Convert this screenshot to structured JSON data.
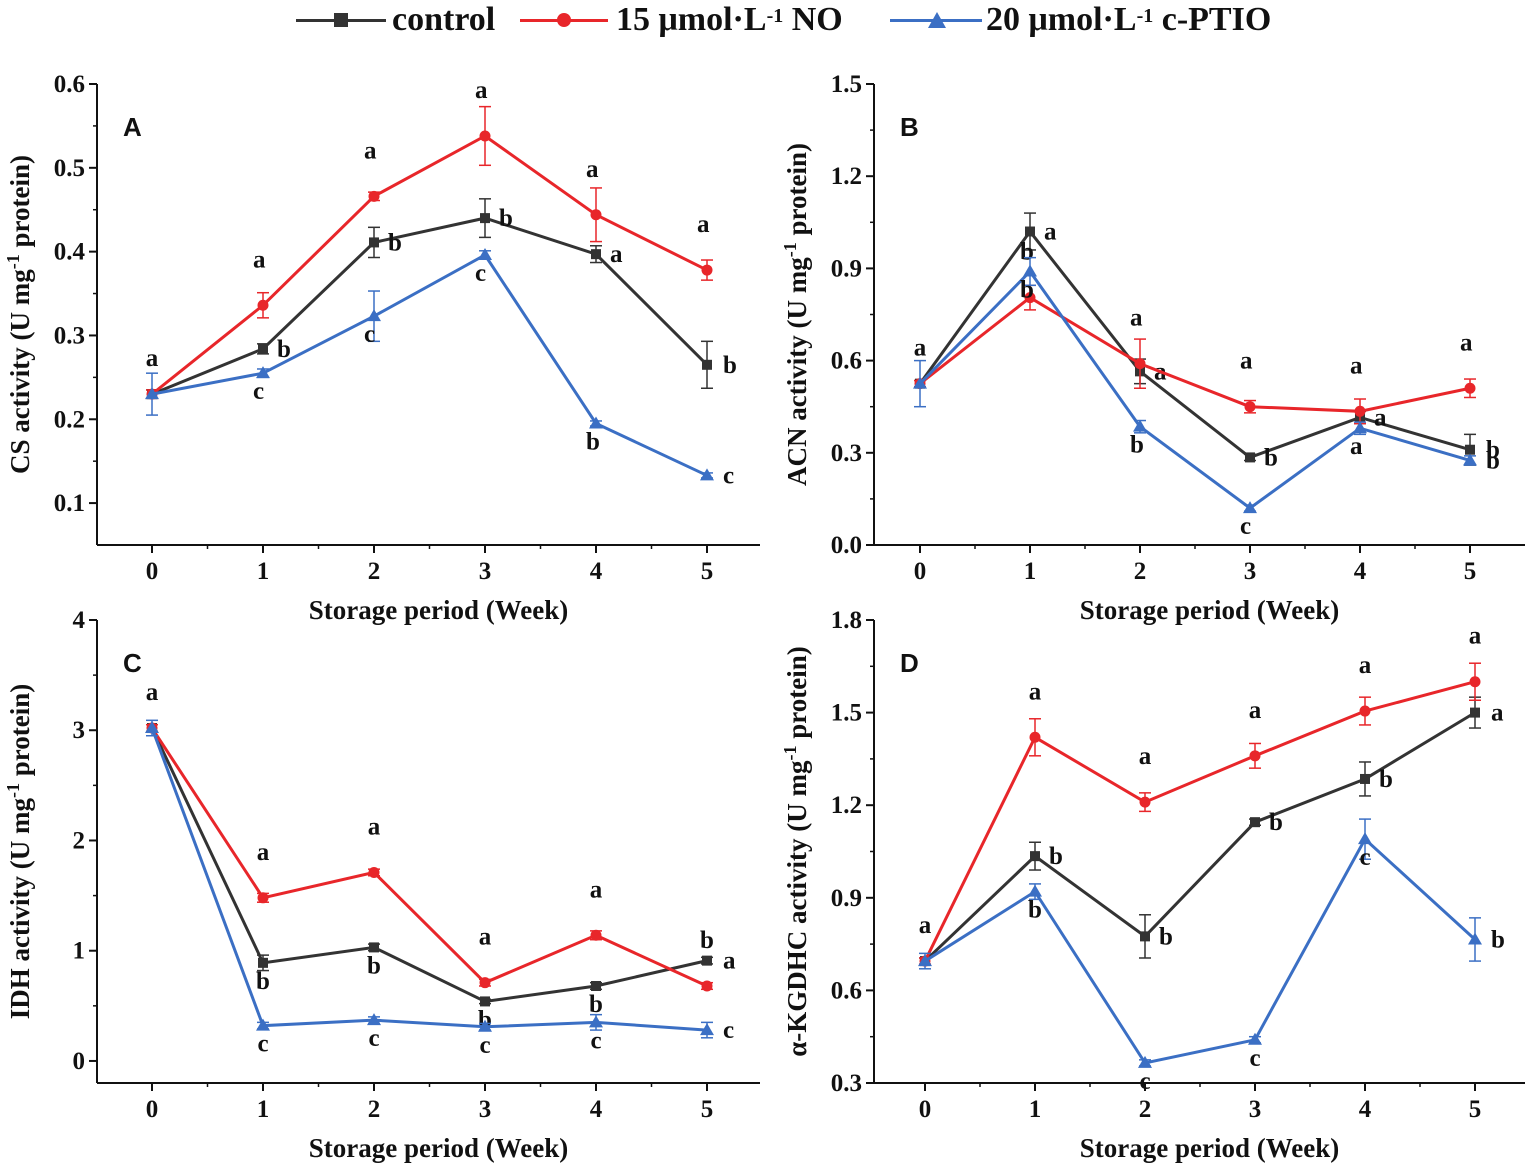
{
  "legend": {
    "items": [
      {
        "label": "control",
        "color": "#333333",
        "marker": "square"
      },
      {
        "label_main": "15 μmol·L",
        "label_sup": "-1",
        "label_tail": " NO",
        "color": "#e8262a",
        "marker": "circle"
      },
      {
        "label_main": "20 μmol·L",
        "label_sup": "-1",
        "label_tail": " c-PTIO",
        "color": "#3b6fc4",
        "marker": "triangle"
      }
    ]
  },
  "chart_data": [
    {
      "type": "line",
      "panel": "A",
      "ylabel_main": "CS activity (U mg",
      "ylabel_sup": "-1",
      "ylabel_tail": " protein)",
      "xlabel": "Storage period (Week)",
      "x": [
        0,
        1,
        2,
        3,
        4,
        5
      ],
      "ylim": [
        0.05,
        0.6
      ],
      "yticks": [
        0.1,
        0.2,
        0.3,
        0.4,
        0.5,
        0.6
      ],
      "ytick_labels": [
        "0.1",
        "0.2",
        "0.3",
        "0.4",
        "0.5",
        "0.6"
      ],
      "series": [
        {
          "name": "control",
          "values": [
            0.23,
            0.284,
            0.411,
            0.44,
            0.397,
            0.265
          ],
          "errors": [
            0.005,
            0.006,
            0.018,
            0.023,
            0.01,
            0.028
          ],
          "labels": [
            "",
            "b",
            "b",
            "b",
            "a",
            "b"
          ]
        },
        {
          "name": "15 μmol·L-1 NO",
          "values": [
            0.23,
            0.336,
            0.466,
            0.538,
            0.444,
            0.378
          ],
          "errors": [
            0.005,
            0.015,
            0.005,
            0.035,
            0.032,
            0.012
          ],
          "labels": [
            "a",
            "a",
            "a",
            "a",
            "a",
            "a"
          ]
        },
        {
          "name": "20 μmol·L-1 c-PTIO",
          "values": [
            0.23,
            0.255,
            0.323,
            0.396,
            0.195,
            0.133
          ],
          "errors": [
            0.025,
            0.005,
            0.03,
            0.005,
            0.003,
            0.003
          ],
          "labels": [
            "",
            "c",
            "c",
            "c",
            "b",
            "c"
          ]
        }
      ]
    },
    {
      "type": "line",
      "panel": "B",
      "ylabel_main": "ACN activity (U mg",
      "ylabel_sup": "-1",
      "ylabel_tail": " protein)",
      "xlabel": "Storage period (Week)",
      "x": [
        0,
        1,
        2,
        3,
        4,
        5
      ],
      "ylim": [
        0.0,
        1.5
      ],
      "yticks": [
        0.0,
        0.3,
        0.6,
        0.9,
        1.2,
        1.5
      ],
      "ytick_labels": [
        "0.0",
        "0.3",
        "0.6",
        "0.9",
        "1.2",
        "1.5"
      ],
      "series": [
        {
          "name": "control",
          "values": [
            0.525,
            1.02,
            0.565,
            0.285,
            0.415,
            0.31
          ],
          "errors": [
            0.01,
            0.06,
            0.04,
            0.01,
            0.02,
            0.05
          ],
          "labels": [
            "",
            "a",
            "a",
            "b",
            "a",
            "b"
          ]
        },
        {
          "name": "15 μmol·L-1 NO",
          "values": [
            0.525,
            0.805,
            0.59,
            0.45,
            0.435,
            0.51
          ],
          "errors": [
            0.01,
            0.04,
            0.08,
            0.02,
            0.04,
            0.03
          ],
          "labels": [
            "a",
            "b",
            "a",
            "a",
            "a",
            "a"
          ]
        },
        {
          "name": "20 μmol·L-1 c-PTIO",
          "values": [
            0.525,
            0.89,
            0.385,
            0.12,
            0.38,
            0.275
          ],
          "errors": [
            0.075,
            0.045,
            0.02,
            0.01,
            0.02,
            0.015
          ],
          "labels": [
            "",
            "b",
            "b",
            "c",
            "a",
            "b"
          ]
        }
      ]
    },
    {
      "type": "line",
      "panel": "C",
      "ylabel_main": "IDH activity (U mg",
      "ylabel_sup": "-1",
      "ylabel_tail": " protein)",
      "xlabel": "Storage period (Week)",
      "x": [
        0,
        1,
        2,
        3,
        4,
        5
      ],
      "ylim": [
        -0.2,
        4.0
      ],
      "yticks": [
        0,
        1,
        2,
        3,
        4
      ],
      "ytick_labels": [
        "0",
        "1",
        "2",
        "3",
        "4"
      ],
      "series": [
        {
          "name": "control",
          "values": [
            3.02,
            0.89,
            1.03,
            0.54,
            0.68,
            0.91
          ],
          "errors": [
            0.03,
            0.07,
            0.03,
            0.02,
            0.03,
            0.03
          ],
          "labels": [
            "",
            "b",
            "b",
            "b",
            "b",
            "a"
          ]
        },
        {
          "name": "15 μmol·L-1 NO",
          "values": [
            3.02,
            1.48,
            1.71,
            0.71,
            1.14,
            0.68
          ],
          "errors": [
            0.03,
            0.04,
            0.03,
            0.03,
            0.04,
            0.03
          ],
          "labels": [
            "a",
            "a",
            "a",
            "a",
            "a",
            "b"
          ]
        },
        {
          "name": "20 μmol·L-1 c-PTIO",
          "values": [
            3.02,
            0.32,
            0.37,
            0.31,
            0.35,
            0.28
          ],
          "errors": [
            0.07,
            0.03,
            0.03,
            0.03,
            0.07,
            0.07
          ],
          "labels": [
            "",
            "c",
            "c",
            "c",
            "c",
            "c"
          ]
        }
      ]
    },
    {
      "type": "line",
      "panel": "D",
      "ylabel_main": "α-KGDHC activity (U mg",
      "ylabel_sup": "-1",
      "ylabel_tail": " protein)",
      "xlabel": "Storage period (Week)",
      "x": [
        0,
        1,
        2,
        3,
        4,
        5
      ],
      "ylim": [
        0.3,
        1.8
      ],
      "yticks": [
        0.3,
        0.6,
        0.9,
        1.2,
        1.5,
        1.8
      ],
      "ytick_labels": [
        "0.3",
        "0.6",
        "0.9",
        "1.2",
        "1.5",
        "1.8"
      ],
      "series": [
        {
          "name": "control",
          "values": [
            0.695,
            1.035,
            0.775,
            1.145,
            1.285,
            1.5
          ],
          "errors": [
            0.01,
            0.045,
            0.07,
            0.01,
            0.055,
            0.05
          ],
          "labels": [
            "",
            "b",
            "b",
            "b",
            "b",
            "a"
          ]
        },
        {
          "name": "15 μmol·L-1 NO",
          "values": [
            0.695,
            1.42,
            1.21,
            1.36,
            1.505,
            1.6
          ],
          "errors": [
            0.01,
            0.06,
            0.03,
            0.04,
            0.045,
            0.06
          ],
          "labels": [
            "a",
            "a",
            "a",
            "a",
            "a",
            "a"
          ]
        },
        {
          "name": "20 μmol·L-1 c-PTIO",
          "values": [
            0.695,
            0.92,
            0.365,
            0.44,
            1.09,
            0.765
          ],
          "errors": [
            0.025,
            0.025,
            0.01,
            0.01,
            0.065,
            0.07
          ],
          "labels": [
            "",
            "b",
            "c",
            "c",
            "c",
            "b"
          ]
        }
      ]
    }
  ]
}
